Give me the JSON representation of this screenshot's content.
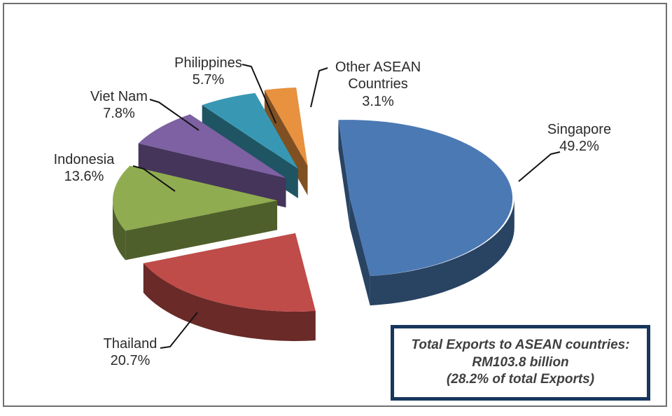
{
  "chart_data": {
    "type": "pie",
    "style": "3d-exploded-pie",
    "title": "",
    "legend": "none",
    "labels_position": "outside-with-leader-lines",
    "start_angle_deg": -4,
    "percent_suffix": "%",
    "slices": [
      {
        "label": "Singapore",
        "value": 49.2,
        "color": "#4B79B4"
      },
      {
        "label": "Thailand",
        "value": 20.7,
        "color": "#BF4C49"
      },
      {
        "label": "Indonesia",
        "value": 13.6,
        "color": "#8FAD50"
      },
      {
        "label": "Viet Nam",
        "value": 7.8,
        "color": "#7D61A3"
      },
      {
        "label": "Philippines",
        "value": 5.7,
        "color": "#3898B4"
      },
      {
        "label": "Other ASEAN Countries",
        "value": 3.1,
        "color": "#E8913E"
      }
    ]
  },
  "note_box": {
    "lines": [
      "Total Exports to ASEAN countries:",
      "RM103.8 billion",
      "(28.2% of total Exports)"
    ],
    "border_color": "#17375D"
  },
  "colors": {
    "leader_line": "#141414",
    "frame_border": "#6F6F6F",
    "label_text": "#2B2B2B"
  }
}
